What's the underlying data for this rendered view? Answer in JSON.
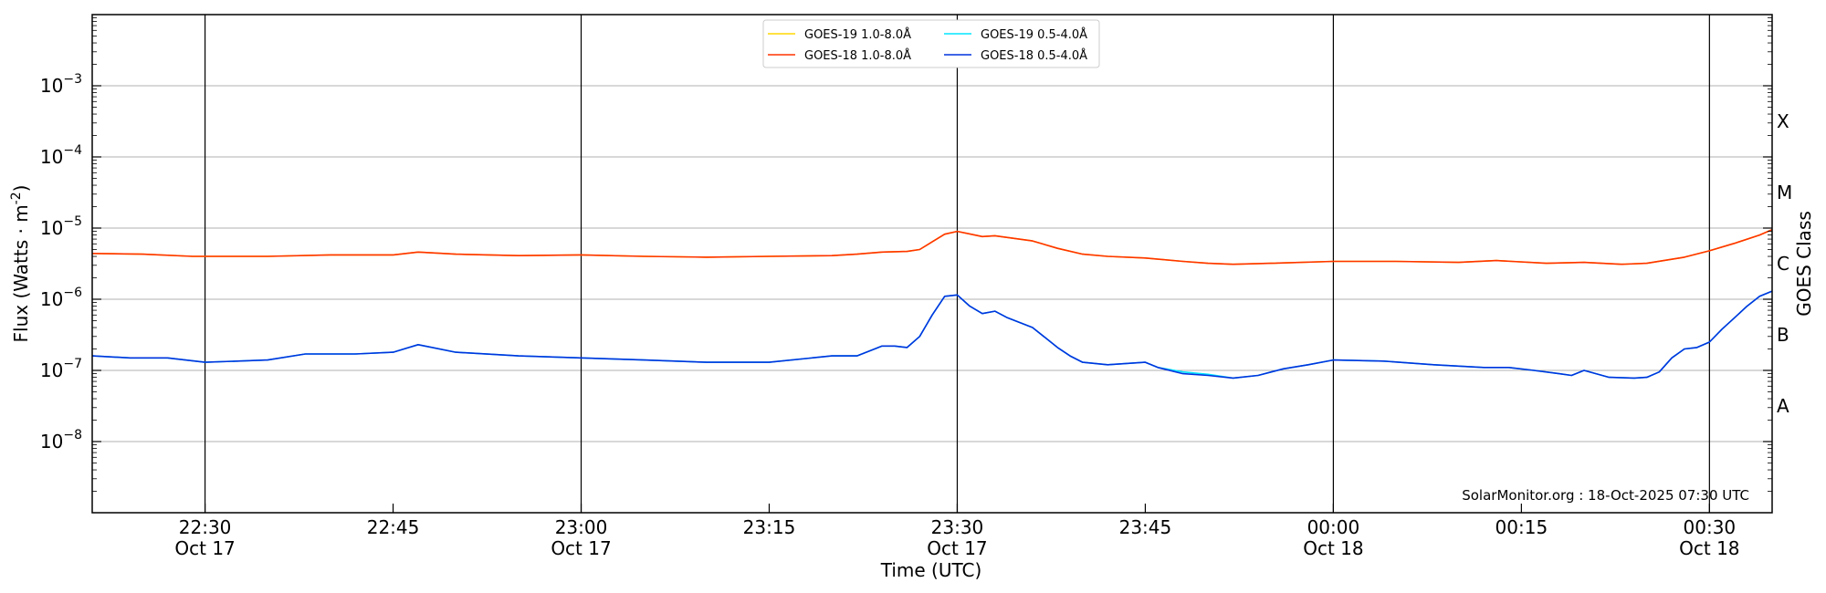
{
  "chart_data": {
    "type": "line",
    "ylabel": "Flux (Watts · m",
    "ylabel_sup": "-2",
    "ylabel_close": ")",
    "xlabel": "Time (UTC)",
    "y2label": "GOES Class",
    "yscale": "log",
    "ylim": [
      1e-09,
      0.01
    ],
    "xlim": [
      "2025-10-17 22:21",
      "2025-10-18 00:35"
    ],
    "y_ticks": [
      {
        "value": 1e-08,
        "base": "10",
        "exp": "−8"
      },
      {
        "value": 1e-07,
        "base": "10",
        "exp": "−7"
      },
      {
        "value": 1e-06,
        "base": "10",
        "exp": "−6"
      },
      {
        "value": 1e-05,
        "base": "10",
        "exp": "−5"
      },
      {
        "value": 0.0001,
        "base": "10",
        "exp": "−4"
      },
      {
        "value": 0.001,
        "base": "10",
        "exp": "−3"
      }
    ],
    "x_ticks": [
      {
        "time": "2025-10-17 22:30",
        "label": "22:30",
        "date": "Oct 17",
        "vline": true
      },
      {
        "time": "2025-10-17 22:45",
        "label": "22:45",
        "date": "",
        "vline": false
      },
      {
        "time": "2025-10-17 23:00",
        "label": "23:00",
        "date": "Oct 17",
        "vline": true
      },
      {
        "time": "2025-10-17 23:15",
        "label": "23:15",
        "date": "",
        "vline": false
      },
      {
        "time": "2025-10-17 23:30",
        "label": "23:30",
        "date": "Oct 17",
        "vline": true
      },
      {
        "time": "2025-10-17 23:45",
        "label": "23:45",
        "date": "",
        "vline": false
      },
      {
        "time": "2025-10-18 00:00",
        "label": "00:00",
        "date": "Oct 18",
        "vline": true
      },
      {
        "time": "2025-10-18 00:15",
        "label": "00:15",
        "date": "",
        "vline": false
      },
      {
        "time": "2025-10-18 00:30",
        "label": "00:30",
        "date": "Oct 18",
        "vline": true
      }
    ],
    "goes_classes": [
      {
        "label": "A",
        "value": 3.16e-08
      },
      {
        "label": "B",
        "value": 3.16e-07
      },
      {
        "label": "C",
        "value": 3.16e-06
      },
      {
        "label": "M",
        "value": 3.16e-05
      },
      {
        "label": "X",
        "value": 0.000316
      }
    ],
    "grid": "horizontal at decades",
    "legend_position": "top-center",
    "series": [
      {
        "name": "GOES-19 1.0-8.0Å",
        "color": "#ffd700",
        "x": [
          "2025-10-17 22:21",
          "2025-10-17 22:25",
          "2025-10-17 22:29",
          "2025-10-17 22:35",
          "2025-10-17 22:40",
          "2025-10-17 22:45",
          "2025-10-17 22:47",
          "2025-10-17 22:50",
          "2025-10-17 22:55",
          "2025-10-17 23:00",
          "2025-10-17 23:05",
          "2025-10-17 23:10",
          "2025-10-17 23:15",
          "2025-10-17 23:20",
          "2025-10-17 23:22",
          "2025-10-17 23:24",
          "2025-10-17 23:26",
          "2025-10-17 23:27",
          "2025-10-17 23:28",
          "2025-10-17 23:29",
          "2025-10-17 23:30",
          "2025-10-17 23:32",
          "2025-10-17 23:33",
          "2025-10-17 23:36",
          "2025-10-17 23:38",
          "2025-10-17 23:40",
          "2025-10-17 23:42",
          "2025-10-17 23:45",
          "2025-10-17 23:48",
          "2025-10-17 23:50",
          "2025-10-17 23:52",
          "2025-10-17 23:55",
          "2025-10-18 00:00",
          "2025-10-18 00:05",
          "2025-10-18 00:10",
          "2025-10-18 00:13",
          "2025-10-18 00:17",
          "2025-10-18 00:20",
          "2025-10-18 00:23",
          "2025-10-18 00:25",
          "2025-10-18 00:28",
          "2025-10-18 00:30",
          "2025-10-18 00:32",
          "2025-10-18 00:34",
          "2025-10-18 00:35"
        ],
        "values": [
          4.4e-06,
          4.3e-06,
          4e-06,
          4e-06,
          4.2e-06,
          4.2e-06,
          4.6e-06,
          4.3e-06,
          4.1e-06,
          4.2e-06,
          4e-06,
          3.9e-06,
          4e-06,
          4.1e-06,
          4.3e-06,
          4.6e-06,
          4.7e-06,
          5e-06,
          6.4e-06,
          8.2e-06,
          9e-06,
          7.6e-06,
          7.8e-06,
          6.6e-06,
          5.2e-06,
          4.3e-06,
          4e-06,
          3.8e-06,
          3.4e-06,
          3.2e-06,
          3.1e-06,
          3.2e-06,
          3.4e-06,
          3.4e-06,
          3.3e-06,
          3.5e-06,
          3.2e-06,
          3.3e-06,
          3.1e-06,
          3.2e-06,
          3.9e-06,
          4.8e-06,
          6.1e-06,
          8e-06,
          9.5e-06
        ]
      },
      {
        "name": "GOES-18 1.0-8.0Å",
        "color": "#ff3300",
        "x": [
          "2025-10-17 22:21",
          "2025-10-17 22:25",
          "2025-10-17 22:29",
          "2025-10-17 22:35",
          "2025-10-17 22:40",
          "2025-10-17 22:45",
          "2025-10-17 22:47",
          "2025-10-17 22:50",
          "2025-10-17 22:55",
          "2025-10-17 23:00",
          "2025-10-17 23:05",
          "2025-10-17 23:10",
          "2025-10-17 23:15",
          "2025-10-17 23:20",
          "2025-10-17 23:22",
          "2025-10-17 23:24",
          "2025-10-17 23:26",
          "2025-10-17 23:27",
          "2025-10-17 23:28",
          "2025-10-17 23:29",
          "2025-10-17 23:30",
          "2025-10-17 23:32",
          "2025-10-17 23:33",
          "2025-10-17 23:36",
          "2025-10-17 23:38",
          "2025-10-17 23:40",
          "2025-10-17 23:42",
          "2025-10-17 23:45",
          "2025-10-17 23:48",
          "2025-10-17 23:50",
          "2025-10-17 23:52",
          "2025-10-17 23:55",
          "2025-10-18 00:00",
          "2025-10-18 00:05",
          "2025-10-18 00:10",
          "2025-10-18 00:13",
          "2025-10-18 00:17",
          "2025-10-18 00:20",
          "2025-10-18 00:23",
          "2025-10-18 00:25",
          "2025-10-18 00:28",
          "2025-10-18 00:30",
          "2025-10-18 00:32",
          "2025-10-18 00:34",
          "2025-10-18 00:35"
        ],
        "values": [
          4.4e-06,
          4.3e-06,
          4e-06,
          4e-06,
          4.2e-06,
          4.2e-06,
          4.6e-06,
          4.3e-06,
          4.1e-06,
          4.2e-06,
          4e-06,
          3.9e-06,
          4e-06,
          4.1e-06,
          4.3e-06,
          4.6e-06,
          4.7e-06,
          5e-06,
          6.4e-06,
          8.2e-06,
          9e-06,
          7.6e-06,
          7.8e-06,
          6.6e-06,
          5.2e-06,
          4.3e-06,
          4e-06,
          3.8e-06,
          3.4e-06,
          3.2e-06,
          3.1e-06,
          3.2e-06,
          3.4e-06,
          3.4e-06,
          3.3e-06,
          3.5e-06,
          3.2e-06,
          3.3e-06,
          3.1e-06,
          3.2e-06,
          3.9e-06,
          4.8e-06,
          6.1e-06,
          8e-06,
          9.5e-06
        ]
      },
      {
        "name": "GOES-19 0.5-4.0Å",
        "color": "#00e5ff",
        "x": [
          "2025-10-17 22:21",
          "2025-10-17 22:24",
          "2025-10-17 22:27",
          "2025-10-17 22:30",
          "2025-10-17 22:35",
          "2025-10-17 22:38",
          "2025-10-17 22:42",
          "2025-10-17 22:45",
          "2025-10-17 22:47",
          "2025-10-17 22:50",
          "2025-10-17 22:55",
          "2025-10-17 23:00",
          "2025-10-17 23:05",
          "2025-10-17 23:10",
          "2025-10-17 23:15",
          "2025-10-17 23:20",
          "2025-10-17 23:22",
          "2025-10-17 23:24",
          "2025-10-17 23:25",
          "2025-10-17 23:26",
          "2025-10-17 23:27",
          "2025-10-17 23:28",
          "2025-10-17 23:29",
          "2025-10-17 23:30",
          "2025-10-17 23:31",
          "2025-10-17 23:32",
          "2025-10-17 23:33",
          "2025-10-17 23:34",
          "2025-10-17 23:36",
          "2025-10-17 23:37",
          "2025-10-17 23:38",
          "2025-10-17 23:39",
          "2025-10-17 23:40",
          "2025-10-17 23:42",
          "2025-10-17 23:45",
          "2025-10-17 23:46",
          "2025-10-17 23:48",
          "2025-10-17 23:50",
          "2025-10-17 23:52",
          "2025-10-17 23:54",
          "2025-10-17 23:56",
          "2025-10-17 23:58",
          "2025-10-18 00:00",
          "2025-10-18 00:04",
          "2025-10-18 00:08",
          "2025-10-18 00:12",
          "2025-10-18 00:14",
          "2025-10-18 00:16",
          "2025-10-18 00:18",
          "2025-10-18 00:19",
          "2025-10-18 00:20",
          "2025-10-18 00:22",
          "2025-10-18 00:24",
          "2025-10-18 00:25",
          "2025-10-18 00:26",
          "2025-10-18 00:27",
          "2025-10-18 00:28",
          "2025-10-18 00:29",
          "2025-10-18 00:30",
          "2025-10-18 00:31",
          "2025-10-18 00:32",
          "2025-10-18 00:33",
          "2025-10-18 00:34",
          "2025-10-18 00:35"
        ],
        "values": [
          1.6e-07,
          1.5e-07,
          1.5e-07,
          1.3e-07,
          1.4e-07,
          1.7e-07,
          1.7e-07,
          1.8e-07,
          2.3e-07,
          1.8e-07,
          1.6e-07,
          1.5e-07,
          1.4e-07,
          1.3e-07,
          1.3e-07,
          1.6e-07,
          1.6e-07,
          2.2e-07,
          2.2e-07,
          2.1e-07,
          3e-07,
          6e-07,
          1.1e-06,
          1.15e-06,
          8e-07,
          6.3e-07,
          6.8e-07,
          5.5e-07,
          4e-07,
          2.9e-07,
          2.1e-07,
          1.6e-07,
          1.3e-07,
          1.2e-07,
          1.3e-07,
          1.1e-07,
          9.5e-08,
          8.8e-08,
          7.8e-08,
          8.5e-08,
          1.05e-07,
          1.2e-07,
          1.4e-07,
          1.35e-07,
          1.2e-07,
          1.1e-07,
          1.1e-07,
          1e-07,
          9e-08,
          8.5e-08,
          1e-07,
          8e-08,
          7.8e-08,
          8e-08,
          9.5e-08,
          1.5e-07,
          2e-07,
          2.1e-07,
          2.5e-07,
          3.8e-07,
          5.5e-07,
          8e-07,
          1.1e-06,
          1.3e-06
        ]
      },
      {
        "name": "GOES-18 0.5-4.0Å",
        "color": "#0033dd",
        "x": [
          "2025-10-17 22:21",
          "2025-10-17 22:24",
          "2025-10-17 22:27",
          "2025-10-17 22:30",
          "2025-10-17 22:35",
          "2025-10-17 22:38",
          "2025-10-17 22:42",
          "2025-10-17 22:45",
          "2025-10-17 22:47",
          "2025-10-17 22:50",
          "2025-10-17 22:55",
          "2025-10-17 23:00",
          "2025-10-17 23:05",
          "2025-10-17 23:10",
          "2025-10-17 23:15",
          "2025-10-17 23:20",
          "2025-10-17 23:22",
          "2025-10-17 23:24",
          "2025-10-17 23:25",
          "2025-10-17 23:26",
          "2025-10-17 23:27",
          "2025-10-17 23:28",
          "2025-10-17 23:29",
          "2025-10-17 23:30",
          "2025-10-17 23:31",
          "2025-10-17 23:32",
          "2025-10-17 23:33",
          "2025-10-17 23:34",
          "2025-10-17 23:36",
          "2025-10-17 23:37",
          "2025-10-17 23:38",
          "2025-10-17 23:39",
          "2025-10-17 23:40",
          "2025-10-17 23:42",
          "2025-10-17 23:45",
          "2025-10-17 23:46",
          "2025-10-17 23:48",
          "2025-10-17 23:50",
          "2025-10-17 23:52",
          "2025-10-17 23:54",
          "2025-10-17 23:56",
          "2025-10-17 23:58",
          "2025-10-18 00:00",
          "2025-10-18 00:04",
          "2025-10-18 00:08",
          "2025-10-18 00:12",
          "2025-10-18 00:14",
          "2025-10-18 00:16",
          "2025-10-18 00:18",
          "2025-10-18 00:19",
          "2025-10-18 00:20",
          "2025-10-18 00:22",
          "2025-10-18 00:24",
          "2025-10-18 00:25",
          "2025-10-18 00:26",
          "2025-10-18 00:27",
          "2025-10-18 00:28",
          "2025-10-18 00:29",
          "2025-10-18 00:30",
          "2025-10-18 00:31",
          "2025-10-18 00:32",
          "2025-10-18 00:33",
          "2025-10-18 00:34",
          "2025-10-18 00:35"
        ],
        "values": [
          1.6e-07,
          1.5e-07,
          1.5e-07,
          1.3e-07,
          1.4e-07,
          1.7e-07,
          1.7e-07,
          1.8e-07,
          2.3e-07,
          1.8e-07,
          1.6e-07,
          1.5e-07,
          1.4e-07,
          1.3e-07,
          1.3e-07,
          1.6e-07,
          1.6e-07,
          2.2e-07,
          2.2e-07,
          2.1e-07,
          3e-07,
          6e-07,
          1.1e-06,
          1.15e-06,
          8e-07,
          6.3e-07,
          6.8e-07,
          5.5e-07,
          4e-07,
          2.9e-07,
          2.1e-07,
          1.6e-07,
          1.3e-07,
          1.2e-07,
          1.3e-07,
          1.1e-07,
          9e-08,
          8.5e-08,
          7.8e-08,
          8.5e-08,
          1.05e-07,
          1.2e-07,
          1.4e-07,
          1.35e-07,
          1.2e-07,
          1.1e-07,
          1.1e-07,
          1e-07,
          9e-08,
          8.5e-08,
          1e-07,
          8e-08,
          7.8e-08,
          8e-08,
          9.5e-08,
          1.5e-07,
          2e-07,
          2.1e-07,
          2.5e-07,
          3.8e-07,
          5.5e-07,
          8e-07,
          1.1e-06,
          1.3e-06
        ]
      }
    ],
    "annotation": "SolarMonitor.org : 18-Oct-2025 07:30 UTC"
  }
}
